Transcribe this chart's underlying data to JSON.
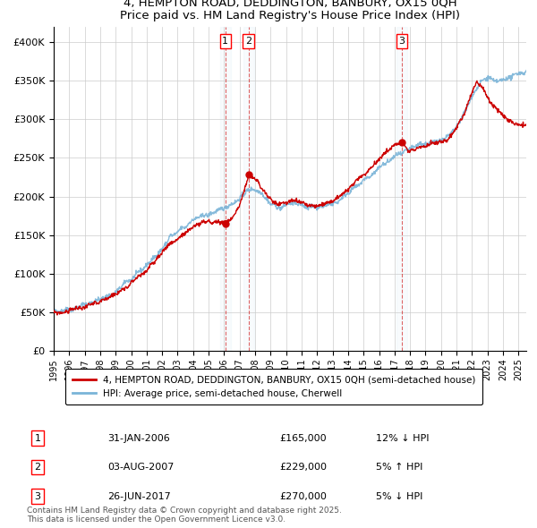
{
  "title": "4, HEMPTON ROAD, DEDDINGTON, BANBURY, OX15 0QH",
  "subtitle": "Price paid vs. HM Land Registry's House Price Index (HPI)",
  "legend_line1": "4, HEMPTON ROAD, DEDDINGTON, BANBURY, OX15 0QH (semi-detached house)",
  "legend_line2": "HPI: Average price, semi-detached house, Cherwell",
  "footer": "Contains HM Land Registry data © Crown copyright and database right 2025.\nThis data is licensed under the Open Government Licence v3.0.",
  "transactions": [
    {
      "num": 1,
      "date": "31-JAN-2006",
      "price": 165000,
      "pct": "12%",
      "dir": "↓",
      "year": 2006.08
    },
    {
      "num": 2,
      "date": "03-AUG-2007",
      "price": 229000,
      "pct": "5%",
      "dir": "↑",
      "year": 2007.58
    },
    {
      "num": 3,
      "date": "26-JUN-2017",
      "price": 270000,
      "pct": "5%",
      "dir": "↓",
      "year": 2017.48
    }
  ],
  "hpi_color": "#7ab4d8",
  "price_color": "#cc0000",
  "vline_color": "#cc0000",
  "background_color": "#ffffff",
  "ylim": [
    0,
    420000
  ],
  "xlim_start": 1995,
  "xlim_end": 2025.5,
  "hpi_knots": [
    [
      1995.0,
      52000
    ],
    [
      1995.5,
      51000
    ],
    [
      1996.0,
      54000
    ],
    [
      1996.5,
      56000
    ],
    [
      1997.0,
      60000
    ],
    [
      1997.5,
      63000
    ],
    [
      1998.0,
      67000
    ],
    [
      1998.5,
      71000
    ],
    [
      1999.0,
      78000
    ],
    [
      1999.5,
      85000
    ],
    [
      2000.0,
      93000
    ],
    [
      2000.5,
      101000
    ],
    [
      2001.0,
      110000
    ],
    [
      2001.5,
      120000
    ],
    [
      2002.0,
      133000
    ],
    [
      2002.5,
      145000
    ],
    [
      2003.0,
      153000
    ],
    [
      2003.5,
      161000
    ],
    [
      2004.0,
      170000
    ],
    [
      2004.5,
      176000
    ],
    [
      2005.0,
      178000
    ],
    [
      2005.5,
      180000
    ],
    [
      2006.0,
      184000
    ],
    [
      2006.5,
      189000
    ],
    [
      2007.0,
      198000
    ],
    [
      2007.5,
      208000
    ],
    [
      2008.0,
      208000
    ],
    [
      2008.5,
      202000
    ],
    [
      2009.0,
      190000
    ],
    [
      2009.5,
      185000
    ],
    [
      2010.0,
      190000
    ],
    [
      2010.5,
      193000
    ],
    [
      2011.0,
      190000
    ],
    [
      2011.5,
      186000
    ],
    [
      2012.0,
      186000
    ],
    [
      2012.5,
      188000
    ],
    [
      2013.0,
      191000
    ],
    [
      2013.5,
      196000
    ],
    [
      2014.0,
      205000
    ],
    [
      2014.5,
      213000
    ],
    [
      2015.0,
      220000
    ],
    [
      2015.5,
      228000
    ],
    [
      2016.0,
      237000
    ],
    [
      2016.5,
      244000
    ],
    [
      2017.0,
      251000
    ],
    [
      2017.5,
      257000
    ],
    [
      2018.0,
      262000
    ],
    [
      2018.5,
      266000
    ],
    [
      2019.0,
      268000
    ],
    [
      2019.5,
      271000
    ],
    [
      2020.0,
      273000
    ],
    [
      2020.5,
      278000
    ],
    [
      2021.0,
      289000
    ],
    [
      2021.5,
      308000
    ],
    [
      2022.0,
      330000
    ],
    [
      2022.5,
      348000
    ],
    [
      2023.0,
      352000
    ],
    [
      2023.5,
      348000
    ],
    [
      2024.0,
      350000
    ],
    [
      2024.5,
      355000
    ],
    [
      2025.0,
      360000
    ],
    [
      2025.5,
      362000
    ]
  ],
  "price_knots": [
    [
      1995.0,
      50000
    ],
    [
      1995.5,
      49000
    ],
    [
      1996.0,
      52000
    ],
    [
      1996.5,
      54000
    ],
    [
      1997.0,
      57000
    ],
    [
      1997.5,
      60000
    ],
    [
      1998.0,
      64000
    ],
    [
      1998.5,
      68000
    ],
    [
      1999.0,
      74000
    ],
    [
      1999.5,
      80000
    ],
    [
      2000.0,
      88000
    ],
    [
      2000.5,
      96000
    ],
    [
      2001.0,
      105000
    ],
    [
      2001.5,
      115000
    ],
    [
      2002.0,
      127000
    ],
    [
      2002.5,
      138000
    ],
    [
      2003.0,
      146000
    ],
    [
      2003.5,
      153000
    ],
    [
      2004.0,
      161000
    ],
    [
      2004.5,
      165000
    ],
    [
      2005.0,
      167000
    ],
    [
      2005.5,
      166000
    ],
    [
      2006.08,
      165000
    ],
    [
      2006.5,
      172000
    ],
    [
      2007.0,
      188000
    ],
    [
      2007.58,
      229000
    ],
    [
      2008.0,
      222000
    ],
    [
      2008.5,
      210000
    ],
    [
      2009.0,
      196000
    ],
    [
      2009.5,
      190000
    ],
    [
      2010.0,
      193000
    ],
    [
      2010.5,
      196000
    ],
    [
      2011.0,
      192000
    ],
    [
      2011.5,
      188000
    ],
    [
      2012.0,
      188000
    ],
    [
      2012.5,
      190000
    ],
    [
      2013.0,
      194000
    ],
    [
      2013.5,
      200000
    ],
    [
      2014.0,
      209000
    ],
    [
      2014.5,
      219000
    ],
    [
      2015.0,
      227000
    ],
    [
      2015.5,
      237000
    ],
    [
      2016.0,
      248000
    ],
    [
      2016.5,
      258000
    ],
    [
      2017.0,
      267000
    ],
    [
      2017.48,
      270000
    ],
    [
      2017.8,
      262000
    ],
    [
      2018.0,
      258000
    ],
    [
      2018.5,
      262000
    ],
    [
      2019.0,
      265000
    ],
    [
      2019.5,
      268000
    ],
    [
      2020.0,
      271000
    ],
    [
      2020.5,
      276000
    ],
    [
      2021.0,
      288000
    ],
    [
      2021.5,
      308000
    ],
    [
      2022.0,
      336000
    ],
    [
      2022.3,
      350000
    ],
    [
      2022.7,
      340000
    ],
    [
      2023.0,
      328000
    ],
    [
      2023.3,
      318000
    ],
    [
      2023.7,
      310000
    ],
    [
      2024.0,
      305000
    ],
    [
      2024.3,
      300000
    ],
    [
      2024.7,
      296000
    ],
    [
      2025.0,
      294000
    ],
    [
      2025.5,
      292000
    ]
  ]
}
